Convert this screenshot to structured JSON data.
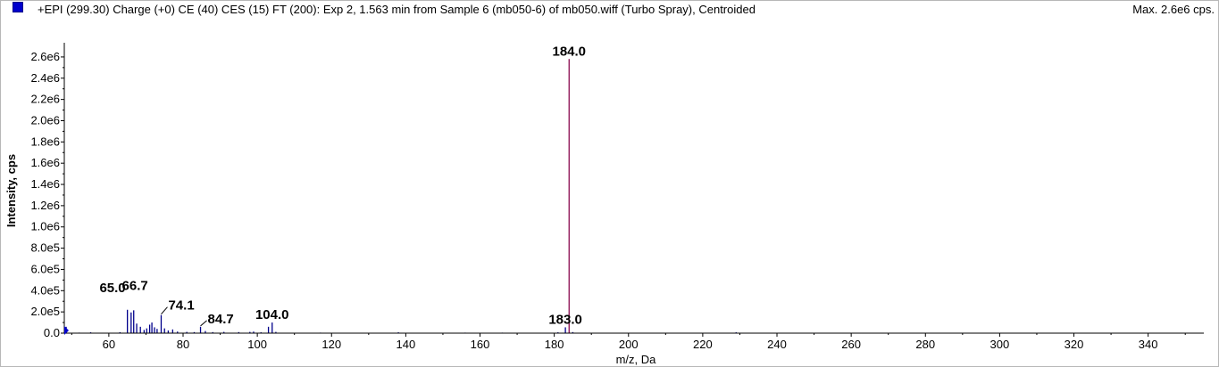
{
  "header": {
    "title": "+EPI (299.30) Charge (+0) CE (40) CES (15) FT (200): Exp 2, 1.563 min from Sample 6 (mb050-6) of mb050.wiff (Turbo Spray), Centroided",
    "max_label": "Max. 2.6e6 cps.",
    "legend_color": "#0000cc"
  },
  "chart_data": {
    "type": "bar",
    "xlabel": "m/z, Da",
    "ylabel": "Intensity, cps",
    "xlim": [
      48,
      355
    ],
    "ylim": [
      0,
      2700000
    ],
    "xticks": [
      60,
      80,
      100,
      120,
      140,
      160,
      180,
      200,
      220,
      240,
      260,
      280,
      300,
      320,
      340
    ],
    "xtick_labels": [
      "60",
      "80",
      "100",
      "120",
      "140",
      "160",
      "180",
      "200",
      "220",
      "240",
      "260",
      "280",
      "300",
      "320",
      "340"
    ],
    "yticks": [
      0,
      200000,
      400000,
      600000,
      800000,
      1000000,
      1200000,
      1400000,
      1600000,
      1800000,
      2000000,
      2200000,
      2400000,
      2600000
    ],
    "ytick_labels": [
      "0.0",
      "2.0e5",
      "4.0e5",
      "6.0e5",
      "8.0e5",
      "1.0e6",
      "1.2e6",
      "1.4e6",
      "1.6e6",
      "1.8e6",
      "2.0e6",
      "2.2e6",
      "2.4e6",
      "2.6e6"
    ],
    "grid": false,
    "bar_color": "#00008b",
    "peak_color": "#8b0a50",
    "peaks": [
      {
        "x": 48.5,
        "y": 60000
      },
      {
        "x": 52.0,
        "y": 5000
      },
      {
        "x": 55.1,
        "y": 8000
      },
      {
        "x": 57.0,
        "y": 4000
      },
      {
        "x": 63.0,
        "y": 9000
      },
      {
        "x": 65.0,
        "y": 220000
      },
      {
        "x": 66.0,
        "y": 195000
      },
      {
        "x": 66.7,
        "y": 215000
      },
      {
        "x": 67.5,
        "y": 90000
      },
      {
        "x": 68.5,
        "y": 60000
      },
      {
        "x": 69.5,
        "y": 30000
      },
      {
        "x": 70.2,
        "y": 45000
      },
      {
        "x": 71.0,
        "y": 80000
      },
      {
        "x": 71.6,
        "y": 100000
      },
      {
        "x": 72.3,
        "y": 55000
      },
      {
        "x": 73.0,
        "y": 40000
      },
      {
        "x": 74.1,
        "y": 170000
      },
      {
        "x": 75.0,
        "y": 45000
      },
      {
        "x": 76.0,
        "y": 25000
      },
      {
        "x": 77.2,
        "y": 35000
      },
      {
        "x": 78.5,
        "y": 15000
      },
      {
        "x": 81.0,
        "y": 12000
      },
      {
        "x": 83.0,
        "y": 10000
      },
      {
        "x": 84.7,
        "y": 60000
      },
      {
        "x": 86.0,
        "y": 20000
      },
      {
        "x": 88.0,
        "y": 10000
      },
      {
        "x": 91.0,
        "y": 12000
      },
      {
        "x": 95.0,
        "y": 10000
      },
      {
        "x": 98.0,
        "y": 12000
      },
      {
        "x": 99.0,
        "y": 15000
      },
      {
        "x": 101.0,
        "y": 8000
      },
      {
        "x": 103.0,
        "y": 60000
      },
      {
        "x": 104.0,
        "y": 100000
      },
      {
        "x": 105.0,
        "y": 12000
      },
      {
        "x": 117.0,
        "y": 5000
      },
      {
        "x": 138.0,
        "y": 8000
      },
      {
        "x": 156.0,
        "y": 5000
      },
      {
        "x": 166.0,
        "y": 5000
      },
      {
        "x": 181.0,
        "y": 8000
      },
      {
        "x": 183.0,
        "y": 55000
      },
      {
        "x": 184.0,
        "y": 2580000
      },
      {
        "x": 185.0,
        "y": 10000
      },
      {
        "x": 229.0,
        "y": 8000
      }
    ],
    "labels": [
      {
        "text": "184.0",
        "x": 184.0,
        "y": 2580000
      },
      {
        "text": "183.0",
        "x": 183.0,
        "y": 55000
      },
      {
        "text": "104.0",
        "x": 104.0,
        "y": 100000
      },
      {
        "text": "84.7",
        "x": 84.7,
        "y": 60000
      },
      {
        "text": "74.1",
        "x": 74.1,
        "y": 170000
      },
      {
        "text": "65.0",
        "x": 65.0,
        "y": 220000
      },
      {
        "text": "66.7",
        "x": 66.7,
        "y": 215000
      }
    ]
  }
}
